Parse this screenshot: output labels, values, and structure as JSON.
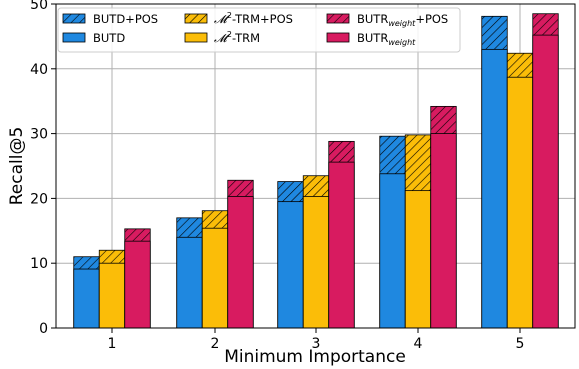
{
  "chart_data": {
    "type": "bar",
    "xlabel": "Minimum Importance",
    "ylabel": "Recall@5",
    "categories": [
      "1",
      "2",
      "3",
      "4",
      "5"
    ],
    "ylim": [
      0,
      50
    ],
    "yticks": [
      "0",
      "10",
      "20",
      "30",
      "40",
      "50"
    ],
    "grid": true,
    "legend_position": "top-left",
    "stacked": "each model shows its base bar with the '+POS' increment stacked on top (hatched)",
    "series": [
      {
        "name": "BUTD+POS",
        "group": "BUTD",
        "kind": "pos",
        "values": [
          11.0,
          17.0,
          22.6,
          29.6,
          48.1
        ]
      },
      {
        "name": "BUTD",
        "group": "BUTD",
        "kind": "base",
        "values": [
          9.1,
          14.0,
          19.5,
          23.8,
          43.0
        ]
      },
      {
        "name": "𝓜²-TRM+POS",
        "group": "M2",
        "kind": "pos",
        "values": [
          12.0,
          18.1,
          23.5,
          29.8,
          42.4
        ]
      },
      {
        "name": "𝓜²-TRM",
        "group": "M2",
        "kind": "base",
        "values": [
          10.0,
          15.4,
          20.3,
          21.2,
          38.7
        ]
      },
      {
        "name": "BUTRweight+POS",
        "group": "BUTR",
        "kind": "pos",
        "values": [
          15.3,
          22.8,
          28.8,
          34.2,
          48.5
        ]
      },
      {
        "name": "BUTRweight",
        "group": "BUTR",
        "kind": "base",
        "values": [
          13.4,
          20.3,
          25.6,
          30.0,
          45.2
        ]
      }
    ]
  },
  "legend": {
    "butd_pos": "BUTD+POS",
    "butd": "BUTD",
    "m2_pos_prefix": "𝓜",
    "m2_sup": "2",
    "m2_pos_suffix": "-TRM+POS",
    "m2_prefix": "𝓜",
    "m2_suffix": "-TRM",
    "butr_pos_base": "BUTR",
    "butr_pos_sub": "weight",
    "butr_pos_suffix": "+POS",
    "butr_base": "BUTR",
    "butr_sub": "weight"
  },
  "colors": {
    "BUTD": "#1f88e0",
    "M2": "#fbbd08",
    "BUTR": "#d81b60",
    "grid": "#b0b0b0",
    "edge": "#000000"
  }
}
